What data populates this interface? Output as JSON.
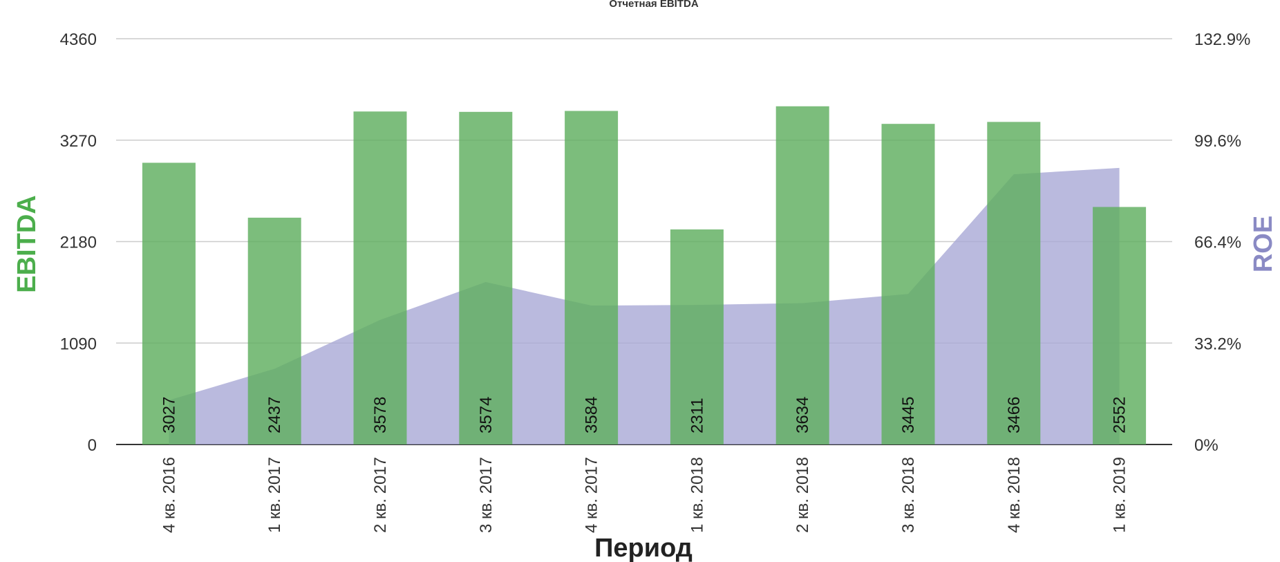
{
  "chart_data": {
    "type": "bar",
    "title": "Отчетная EBITDA",
    "xlabel": "Период",
    "ylabel": "EBITDA",
    "y2label": "ROE",
    "categories": [
      "4 кв. 2016",
      "1 кв. 2017",
      "2 кв. 2017",
      "3 кв. 2017",
      "4 кв. 2017",
      "1 кв. 2018",
      "2 кв. 2018",
      "3 кв. 2018",
      "4 кв. 2018",
      "1 кв. 2019"
    ],
    "series": [
      {
        "name": "EBITDA",
        "type": "bar",
        "axis": "left",
        "color": "#5fae5f",
        "values": [
          3027,
          2437,
          3578,
          3574,
          3584,
          2311,
          3634,
          3445,
          3466,
          2552
        ]
      },
      {
        "name": "ROE",
        "type": "area",
        "axis": "right",
        "color": "#a9a9d6",
        "values": [
          14.5,
          24.8,
          40.8,
          53.2,
          45.5,
          45.7,
          46.3,
          49.3,
          88.5,
          90.6
        ]
      }
    ],
    "ylim": [
      0,
      4360
    ],
    "yticks": [
      "0",
      "1090",
      "2180",
      "3270",
      "4360"
    ],
    "y2lim": [
      0,
      132.9
    ],
    "y2ticks": [
      "0%",
      "33.2%",
      "66.4%",
      "99.6%",
      "132.9%"
    ],
    "grid": true,
    "colors": {
      "bar": "#5fae5f",
      "area": "#a9a9d6",
      "ylabel": "#4cae4c",
      "y2label": "#8a8ac4",
      "grid": "#cccccc"
    }
  }
}
